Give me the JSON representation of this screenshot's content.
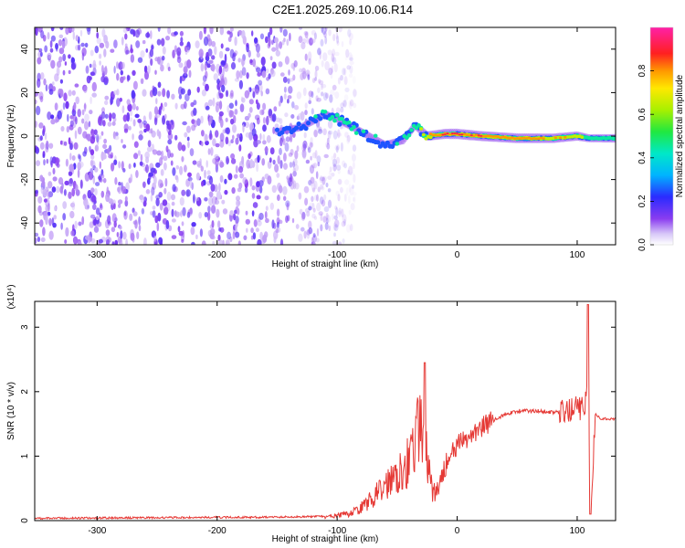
{
  "title": "C2E1.2025.269.10.06.R14",
  "colors": {
    "snr_line": "#e53935",
    "frame": "#000000",
    "spectro_base": "#7a3cf0"
  },
  "chart_data": [
    {
      "type": "heatmap",
      "xlabel": "Height of straight line (km)",
      "ylabel": "Frequency (Hz)",
      "xlim": [
        -352,
        132
      ],
      "ylim": [
        -50,
        50
      ],
      "x_ticks": [
        "-300",
        "-200",
        "-100",
        "0",
        "100"
      ],
      "x_tick_values": [
        -300,
        -200,
        -100,
        0,
        100
      ],
      "y_ticks": [
        "-40",
        "-20",
        "0",
        "20",
        "40"
      ],
      "y_tick_values": [
        -40,
        -20,
        0,
        20,
        40
      ],
      "colorbar": {
        "label": "Normalized spectral amplitude",
        "ticks": [
          "0.0",
          "0.2",
          "0.4",
          "0.6",
          "0.8"
        ],
        "tick_values": [
          0.0,
          0.2,
          0.4,
          0.6,
          0.8
        ],
        "range": [
          0,
          1
        ]
      },
      "signal_ridge": {
        "x": [
          -150,
          -130,
          -110,
          -100,
          -80,
          -60,
          -45,
          -35,
          -25,
          -10,
          0,
          20,
          50,
          80,
          100,
          110,
          132
        ],
        "frequency": [
          2,
          4,
          10,
          8,
          2,
          -4,
          -2,
          5,
          0,
          1,
          1,
          0,
          -1,
          -1,
          0,
          -1,
          -1
        ],
        "amplitude": [
          0.35,
          0.4,
          0.45,
          0.5,
          0.45,
          0.4,
          0.45,
          0.5,
          0.8,
          0.9,
          0.95,
          0.9,
          0.85,
          0.8,
          0.75,
          0.5,
          0.6
        ]
      },
      "noise_region_x": [
        -352,
        -100
      ]
    },
    {
      "type": "line",
      "xlabel": "Height of straight line (km)",
      "ylabel": "SNR (10 * v/v)",
      "y_scale_label": "(x10⁴)",
      "xlim": [
        -352,
        132
      ],
      "ylim": [
        0,
        3.4
      ],
      "x_ticks": [
        "-300",
        "-200",
        "-100",
        "0",
        "100"
      ],
      "x_tick_values": [
        -300,
        -200,
        -100,
        0,
        100
      ],
      "y_ticks": [
        "0",
        "1",
        "2",
        "3"
      ],
      "y_tick_values": [
        0,
        1,
        2,
        3
      ],
      "series": [
        {
          "x": [
            -352,
            -250,
            -150,
            -110,
            -100,
            -90,
            -80,
            -70,
            -60,
            -50,
            -40,
            -35,
            -30,
            -25,
            -20,
            -15,
            -10,
            -5,
            0,
            10,
            20,
            30,
            40,
            50,
            60,
            70,
            80,
            90,
            95,
            100,
            105,
            108,
            110,
            112,
            115,
            120,
            132
          ],
          "y": [
            0.02,
            0.03,
            0.04,
            0.05,
            0.08,
            0.1,
            0.2,
            0.35,
            0.55,
            0.75,
            0.95,
            1.2,
            1.5,
            0.9,
            0.4,
            0.5,
            0.85,
            1.0,
            1.15,
            1.3,
            1.45,
            1.55,
            1.65,
            1.7,
            1.7,
            1.7,
            1.68,
            1.67,
            1.72,
            1.75,
            1.72,
            1.9,
            1.1,
            0.4,
            1.65,
            1.58,
            1.58
          ]
        }
      ]
    }
  ]
}
